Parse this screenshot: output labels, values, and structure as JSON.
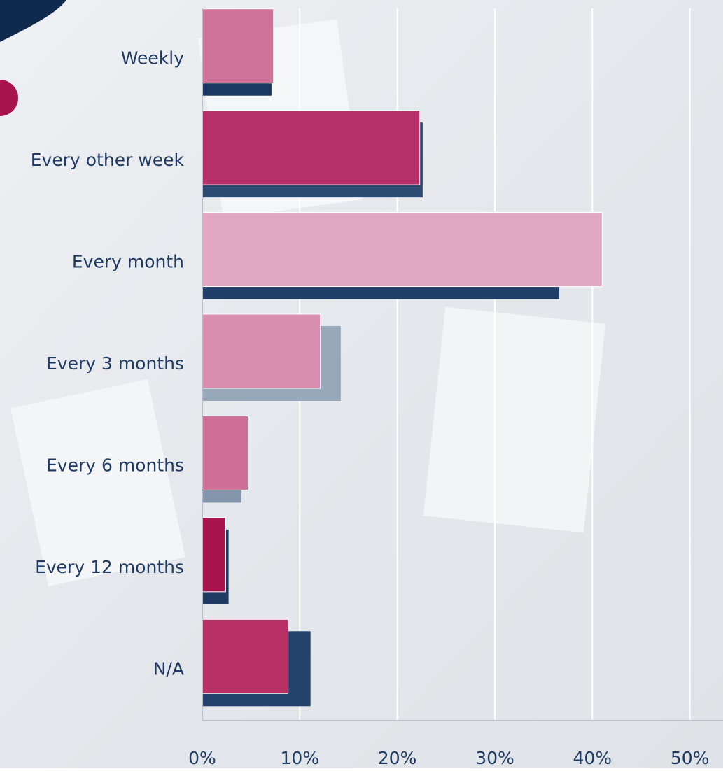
{
  "chart_data": {
    "type": "hbar",
    "categories": [
      "Weekly",
      "Every other week",
      "Every month",
      "Every 3 months",
      "Every 6 months",
      "Every 12 months",
      "N/A"
    ],
    "series": [
      {
        "colors": [
          "#1b3a63",
          "#2d4b72",
          "#1f3f68",
          "#97a8ba",
          "#8396ab",
          "#1f3b63",
          "#23426b"
        ],
        "values": [
          7.1,
          22.6,
          36.6,
          14.2,
          4.0,
          2.7,
          11.1
        ]
      },
      {
        "colors": [
          "#cf7399",
          "#b52f68",
          "#e2a8c2",
          "#d88faf",
          "#cf6e97",
          "#a8154e",
          "#b83166"
        ],
        "values": [
          7.3,
          22.3,
          41.0,
          12.1,
          4.7,
          2.4,
          8.8
        ]
      }
    ],
    "xlim": [
      0,
      53.4
    ],
    "xticks": [
      {
        "value": 0,
        "label": "0%"
      },
      {
        "value": 10,
        "label": "10%"
      },
      {
        "value": 20,
        "label": "20%"
      },
      {
        "value": 30,
        "label": "30%"
      },
      {
        "value": 40,
        "label": "40%"
      },
      {
        "value": 50,
        "label": "50%"
      }
    ],
    "grid": true
  }
}
